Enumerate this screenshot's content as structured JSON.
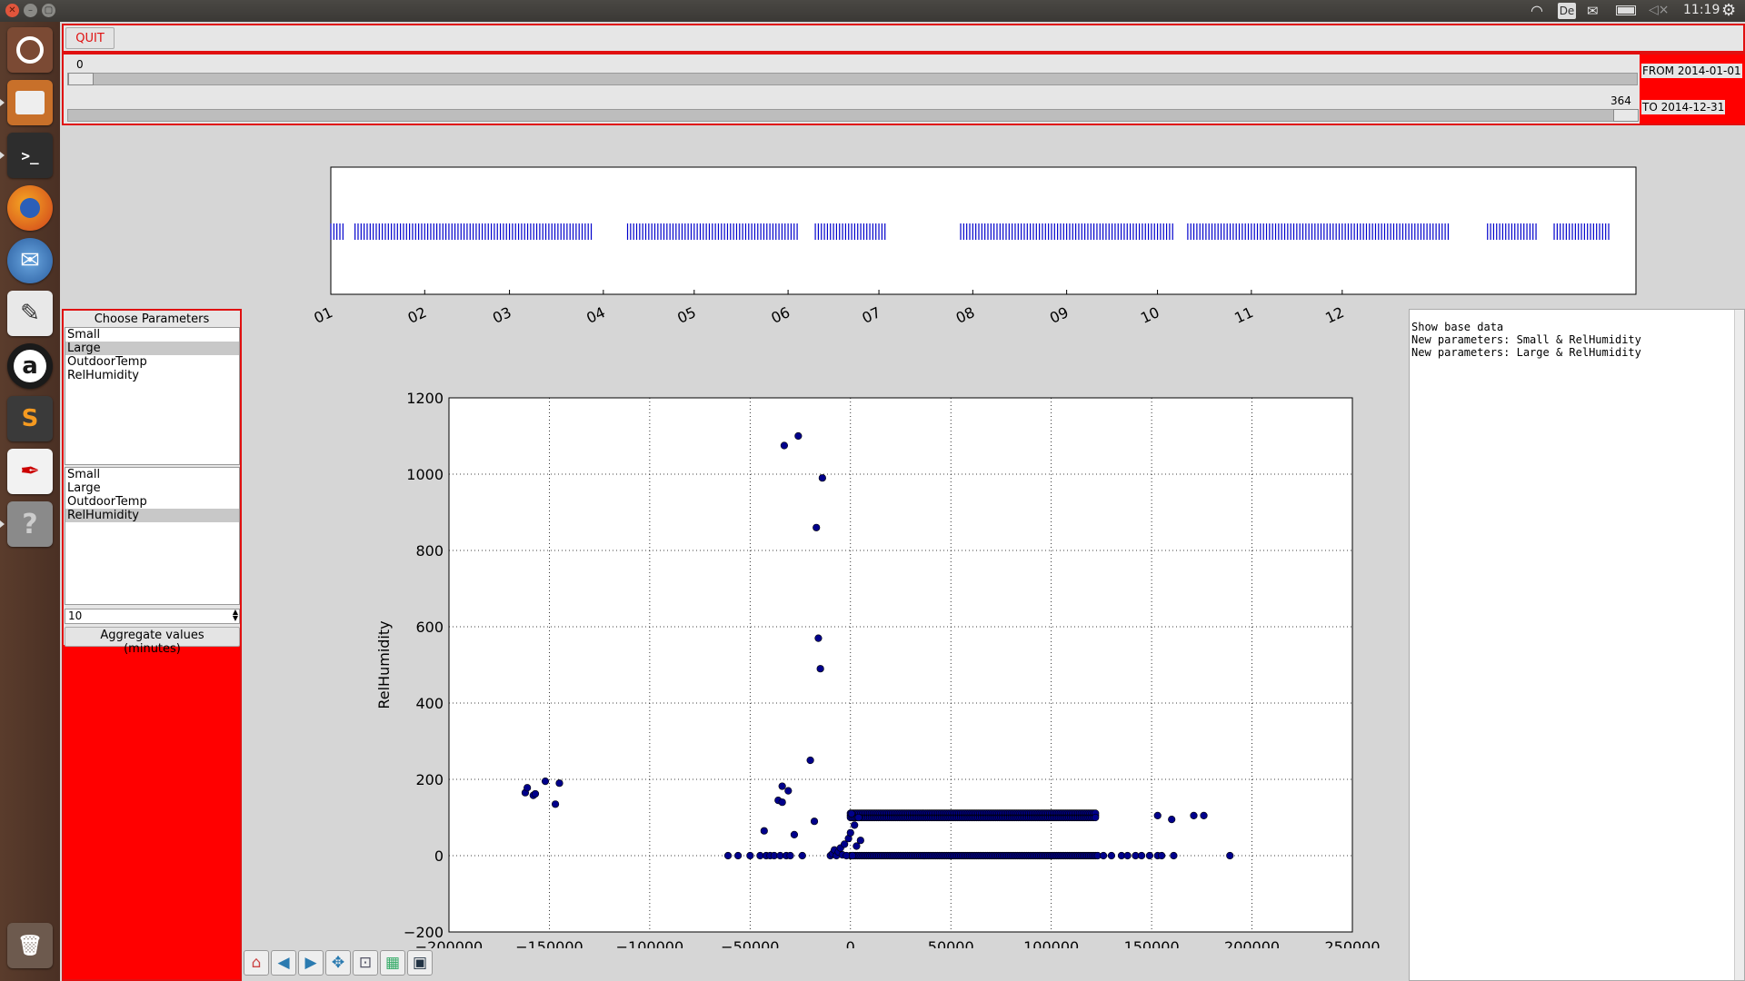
{
  "system_bar": {
    "keyboard": "De",
    "time": "11:19"
  },
  "launcher": {
    "icons": [
      "ubuntu-dash-icon",
      "files-icon",
      "terminal-icon",
      "firefox-icon",
      "thunderbird-icon",
      "text-editor-icon",
      "amazon-icon",
      "sublime-text-icon",
      "document-viewer-icon",
      "help-icon",
      "trash-icon"
    ]
  },
  "toolbar": {
    "quit_label": "QUIT"
  },
  "range": {
    "from_value": "0",
    "from_label": "FROM 2014-01-01",
    "to_value": "364",
    "to_label": "TO 2014-12-31",
    "from_fraction": 0,
    "to_fraction": 1
  },
  "parameters": {
    "title": "Choose Parameters",
    "x_options": [
      "Small",
      "Large",
      "OutdoorTemp",
      "RelHumidity"
    ],
    "x_selected": "Large",
    "y_options": [
      "Small",
      "Large",
      "OutdoorTemp",
      "RelHumidity"
    ],
    "y_selected": "RelHumidity",
    "aggregate_value": "10",
    "aggregate_button": "Aggregate values (minutes)"
  },
  "log": {
    "lines": [
      "Show base data",
      "New parameters: Small & RelHumidity",
      "New parameters: Large & RelHumidity"
    ]
  },
  "timeline": {
    "tick_labels": [
      "01",
      "02",
      "03",
      "04",
      "05",
      "06",
      "07",
      "08",
      "09",
      "10",
      "11",
      "12"
    ],
    "mark_color": "#0000cc",
    "day_ranges": [
      [
        0,
        4
      ],
      [
        8,
        86
      ],
      [
        98,
        154
      ],
      [
        160,
        183
      ],
      [
        208,
        278
      ],
      [
        283,
        369
      ],
      [
        382,
        398
      ],
      [
        404,
        422
      ]
    ],
    "day_max": 431
  },
  "chart_data": {
    "type": "scatter",
    "xlabel": "Large",
    "ylabel": "RelHumidity",
    "xlim": [
      -200000,
      250000
    ],
    "ylim": [
      -200,
      1200
    ],
    "x_ticks": [
      "−200000",
      "−150000",
      "−100000",
      "−50000",
      "0",
      "50000",
      "100000",
      "150000",
      "200000",
      "250000"
    ],
    "y_ticks": [
      "−200",
      "0",
      "200",
      "400",
      "600",
      "800",
      "1000",
      "1200"
    ],
    "grid": true,
    "marker_color": "#00008b",
    "points": [
      [
        -162000,
        165
      ],
      [
        -161000,
        178
      ],
      [
        -158000,
        158
      ],
      [
        -157000,
        162
      ],
      [
        -152000,
        195
      ],
      [
        -147000,
        135
      ],
      [
        -145000,
        190
      ],
      [
        -61000,
        0
      ],
      [
        -56000,
        0
      ],
      [
        -50000,
        0
      ],
      [
        -45000,
        0
      ],
      [
        -43000,
        65
      ],
      [
        -42000,
        0
      ],
      [
        -40000,
        0
      ],
      [
        -38000,
        0
      ],
      [
        -36000,
        145
      ],
      [
        -35000,
        0
      ],
      [
        -34000,
        140
      ],
      [
        -34000,
        182
      ],
      [
        -33000,
        1075
      ],
      [
        -32000,
        0
      ],
      [
        -31000,
        170
      ],
      [
        -30000,
        0
      ],
      [
        -28000,
        55
      ],
      [
        -26000,
        1100
      ],
      [
        -24000,
        0
      ],
      [
        -20000,
        250
      ],
      [
        -18000,
        90
      ],
      [
        -17000,
        860
      ],
      [
        -16000,
        570
      ],
      [
        -15000,
        490
      ],
      [
        -14000,
        990
      ],
      [
        -10000,
        0
      ],
      [
        -9000,
        5
      ],
      [
        -8000,
        15
      ],
      [
        -7000,
        0
      ],
      [
        -6000,
        10
      ],
      [
        -5000,
        20
      ],
      [
        -4000,
        2
      ],
      [
        -3000,
        30
      ],
      [
        -2000,
        0
      ],
      [
        -1000,
        45
      ],
      [
        0,
        60
      ],
      [
        500,
        110
      ],
      [
        1000,
        0
      ],
      [
        2000,
        80
      ],
      [
        3000,
        25
      ],
      [
        4000,
        100
      ],
      [
        5000,
        40
      ]
    ],
    "bands": [
      {
        "x_from": 0,
        "x_to": 124000,
        "y": 0
      },
      {
        "x_from": 0,
        "x_to": 122000,
        "y": 105
      }
    ],
    "extra_points": [
      [
        126000,
        0
      ],
      [
        130000,
        0
      ],
      [
        135000,
        0
      ],
      [
        138000,
        0
      ],
      [
        142000,
        0
      ],
      [
        145000,
        0
      ],
      [
        149000,
        0
      ],
      [
        153000,
        0
      ],
      [
        155000,
        0
      ],
      [
        161000,
        0
      ],
      [
        189000,
        0
      ],
      [
        153000,
        105
      ],
      [
        160000,
        95
      ],
      [
        171000,
        105
      ],
      [
        176000,
        105
      ]
    ]
  },
  "plot_toolbar": {
    "icons": [
      "home-icon",
      "back-icon",
      "forward-icon",
      "pan-icon",
      "zoom-icon",
      "configure-subplots-icon",
      "save-icon"
    ]
  }
}
